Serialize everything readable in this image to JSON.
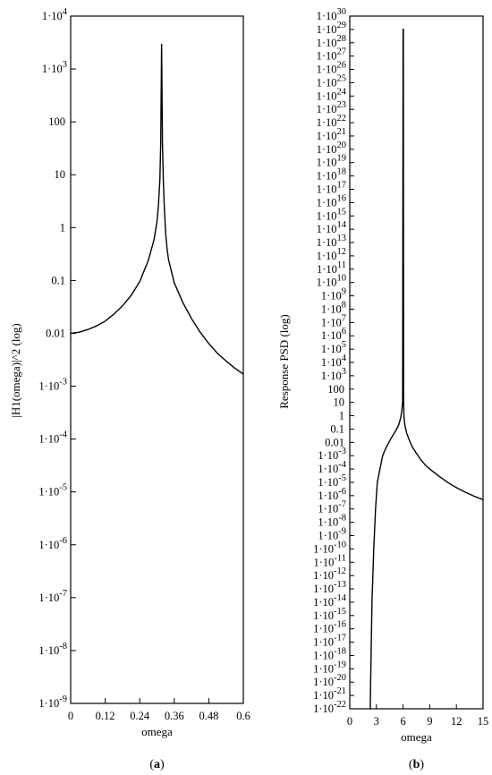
{
  "chart_data": [
    {
      "type": "line",
      "panel_label": "(a)",
      "xlabel": "omega",
      "ylabel": "|H1(omega)|^2 (log)",
      "y_scale": "log",
      "xlim": [
        0,
        0.6
      ],
      "ylim_exp": [
        -9,
        4
      ],
      "x_ticks": [
        "0",
        "0.12",
        "0.24",
        "0.36",
        "0.48",
        "0.6"
      ],
      "y_ticks": [
        {
          "base": "1·10",
          "exp": "-9"
        },
        {
          "base": "1·10",
          "exp": "-8"
        },
        {
          "base": "1·10",
          "exp": "-7"
        },
        {
          "base": "1·10",
          "exp": "-6"
        },
        {
          "base": "1·10",
          "exp": "-5"
        },
        {
          "base": "1·10",
          "exp": "-4"
        },
        {
          "base": "1·10",
          "exp": "-3"
        },
        {
          "base": "0.01",
          "exp": ""
        },
        {
          "base": "0.1",
          "exp": ""
        },
        {
          "base": "1",
          "exp": ""
        },
        {
          "base": "10",
          "exp": ""
        },
        {
          "base": "100",
          "exp": ""
        },
        {
          "base": "1·10",
          "exp": "3"
        },
        {
          "base": "1·10",
          "exp": "4"
        }
      ],
      "x": [
        0,
        0.03,
        0.06,
        0.09,
        0.12,
        0.15,
        0.18,
        0.21,
        0.24,
        0.27,
        0.29,
        0.3,
        0.305,
        0.31,
        0.313,
        0.316,
        0.319,
        0.322,
        0.325,
        0.33,
        0.335,
        0.34,
        0.36,
        0.39,
        0.42,
        0.45,
        0.48,
        0.51,
        0.54,
        0.57,
        0.6
      ],
      "y": [
        0.01,
        0.0105,
        0.0118,
        0.0138,
        0.017,
        0.023,
        0.033,
        0.052,
        0.095,
        0.24,
        0.6,
        1.3,
        2.6,
        8,
        40,
        3000,
        40,
        8,
        2.7,
        0.8,
        0.4,
        0.25,
        0.09,
        0.038,
        0.019,
        0.0105,
        0.0064,
        0.0042,
        0.003,
        0.0022,
        0.0017
      ]
    },
    {
      "type": "line",
      "panel_label": "(b)",
      "xlabel": "omega",
      "ylabel": "Response PSD (log)",
      "y_scale": "log",
      "xlim": [
        0,
        15
      ],
      "ylim_exp": [
        -22,
        30
      ],
      "x_ticks": [
        "0",
        "3",
        "6",
        "9",
        "12",
        "15"
      ],
      "y_ticks": [
        {
          "base": "1·10",
          "exp": "-22"
        },
        {
          "base": "1·10",
          "exp": "-21"
        },
        {
          "base": "1·10",
          "exp": "-20"
        },
        {
          "base": "1·10",
          "exp": "-19"
        },
        {
          "base": "1·10",
          "exp": "-18"
        },
        {
          "base": "1·10",
          "exp": "-17"
        },
        {
          "base": "1·10",
          "exp": "-16"
        },
        {
          "base": "1·10",
          "exp": "-15"
        },
        {
          "base": "1·10",
          "exp": "-14"
        },
        {
          "base": "1·10",
          "exp": "-13"
        },
        {
          "base": "1·10",
          "exp": "-12"
        },
        {
          "base": "1·10",
          "exp": "-11"
        },
        {
          "base": "1·10",
          "exp": "-10"
        },
        {
          "base": "1·10",
          "exp": "-9"
        },
        {
          "base": "1·10",
          "exp": "-8"
        },
        {
          "base": "1·10",
          "exp": "-7"
        },
        {
          "base": "1·10",
          "exp": "-6"
        },
        {
          "base": "1·10",
          "exp": "-5"
        },
        {
          "base": "1·10",
          "exp": "-4"
        },
        {
          "base": "1·10",
          "exp": "-3"
        },
        {
          "base": "0.01",
          "exp": ""
        },
        {
          "base": "0.1",
          "exp": ""
        },
        {
          "base": "1",
          "exp": ""
        },
        {
          "base": "10",
          "exp": ""
        },
        {
          "base": "100",
          "exp": ""
        },
        {
          "base": "1·10",
          "exp": "3"
        },
        {
          "base": "1·10",
          "exp": "4"
        },
        {
          "base": "1·10",
          "exp": "5"
        },
        {
          "base": "1·10",
          "exp": "6"
        },
        {
          "base": "1·10",
          "exp": "7"
        },
        {
          "base": "1·10",
          "exp": "8"
        },
        {
          "base": "1·10",
          "exp": "9"
        },
        {
          "base": "1·10",
          "exp": "10"
        },
        {
          "base": "1·10",
          "exp": "11"
        },
        {
          "base": "1·10",
          "exp": "12"
        },
        {
          "base": "1·10",
          "exp": "13"
        },
        {
          "base": "1·10",
          "exp": "14"
        },
        {
          "base": "1·10",
          "exp": "15"
        },
        {
          "base": "1·10",
          "exp": "16"
        },
        {
          "base": "1·10",
          "exp": "17"
        },
        {
          "base": "1·10",
          "exp": "18"
        },
        {
          "base": "1·10",
          "exp": "19"
        },
        {
          "base": "1·10",
          "exp": "20"
        },
        {
          "base": "1·10",
          "exp": "21"
        },
        {
          "base": "1·10",
          "exp": "22"
        },
        {
          "base": "1·10",
          "exp": "23"
        },
        {
          "base": "1·10",
          "exp": "24"
        },
        {
          "base": "1·10",
          "exp": "25"
        },
        {
          "base": "1·10",
          "exp": "26"
        },
        {
          "base": "1·10",
          "exp": "27"
        },
        {
          "base": "1·10",
          "exp": "28"
        },
        {
          "base": "1·10",
          "exp": "29"
        },
        {
          "base": "1·10",
          "exp": "30"
        }
      ],
      "x": [
        2.3,
        2.5,
        2.7,
        2.9,
        3.1,
        3.4,
        3.7,
        4.0,
        4.4,
        4.8,
        5.2,
        5.5,
        5.7,
        5.85,
        5.95,
        6.0,
        6.03,
        6.06,
        6.1,
        6.2,
        6.4,
        6.7,
        7.0,
        7.5,
        8.0,
        8.5,
        9.0,
        10.0,
        11.0,
        12.0,
        13.0,
        14.0,
        15.0
      ],
      "y": [
        1e-22,
        1e-14,
        1e-10,
        1e-07,
        1e-05,
        0.0001,
        0.001,
        0.003,
        0.01,
        0.03,
        0.08,
        0.2,
        0.6,
        2,
        12,
        1e+29,
        1e+29,
        12,
        0.8,
        0.2,
        0.05,
        0.015,
        0.005,
        0.0015,
        0.0005,
        0.0002,
        0.0001,
        3e-05,
        1e-05,
        4e-06,
        1.8e-06,
        9e-07,
        5e-07
      ]
    }
  ]
}
